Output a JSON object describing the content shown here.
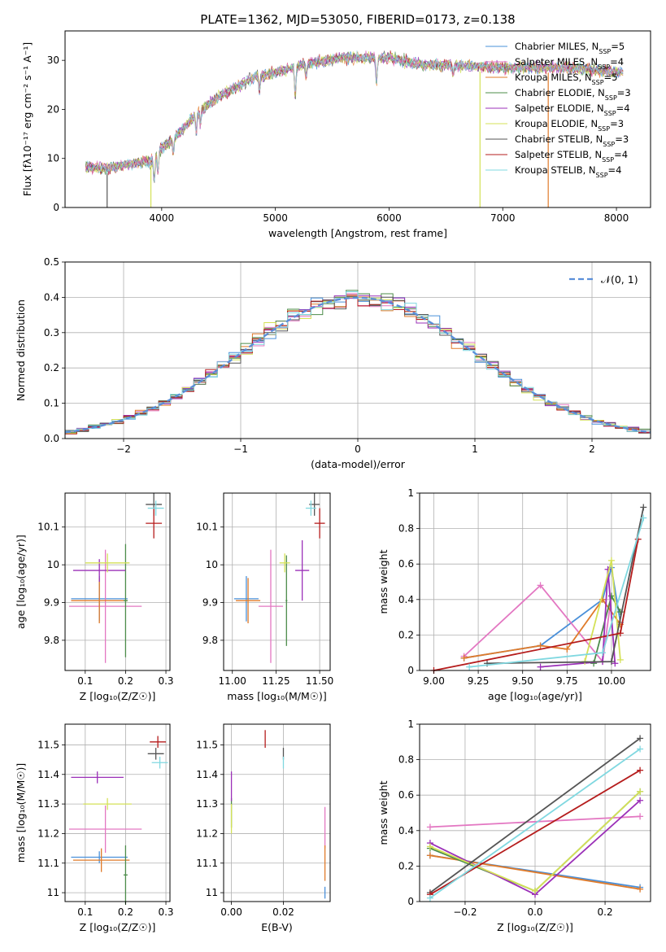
{
  "figure": {
    "title": "PLATE=1362, MJD=53050, FIBERID=0173, z=0.138",
    "legend_entries": [
      {
        "label": "Chabrier MILES, N",
        "sub": "SSP",
        "tail": "=5",
        "color": "#4a90d9"
      },
      {
        "label": "Salpeter MILES, N",
        "sub": "SSP",
        "tail": "=4",
        "color": "#e377c2"
      },
      {
        "label": "Kroupa MILES, N",
        "sub": "SSP",
        "tail": "=5",
        "color": "#e07b2a"
      },
      {
        "label": "Chabrier ELODIE, N",
        "sub": "SSP",
        "tail": "=3",
        "color": "#4c8c4a"
      },
      {
        "label": "Salpeter ELODIE, N",
        "sub": "SSP",
        "tail": "=4",
        "color": "#9b30b8"
      },
      {
        "label": "Kroupa ELODIE, N",
        "sub": "SSP",
        "tail": "=3",
        "color": "#d4e157"
      },
      {
        "label": "Chabrier STELIB, N",
        "sub": "SSP",
        "tail": "=3",
        "color": "#555555"
      },
      {
        "label": "Salpeter STELIB, N",
        "sub": "SSP",
        "tail": "=4",
        "color": "#b51c1c"
      },
      {
        "label": "Kroupa STELIB, N",
        "sub": "SSP",
        "tail": "=4",
        "color": "#80d8e0"
      }
    ]
  },
  "chart_data": [
    {
      "id": "spectrum",
      "type": "line",
      "xlabel": "wavelength [Angstrom, rest frame]",
      "ylabel": "Flux [fλ10⁻¹⁷ erg cm⁻² s⁻¹ A⁻¹]",
      "xlim": [
        3150,
        8300
      ],
      "ylim": [
        0,
        36
      ],
      "xticks": [
        4000,
        5000,
        6000,
        7000,
        8000
      ],
      "yticks": [
        0,
        10,
        20,
        30
      ],
      "continuum_knots": [
        [
          3330,
          8.3
        ],
        [
          3500,
          7.9
        ],
        [
          3700,
          8.8
        ],
        [
          3900,
          9.4
        ],
        [
          4000,
          12.0
        ],
        [
          4150,
          15.0
        ],
        [
          4300,
          19.0
        ],
        [
          4500,
          22.5
        ],
        [
          4800,
          26.5
        ],
        [
          5000,
          27.5
        ],
        [
          5300,
          29.5
        ],
        [
          5600,
          30.5
        ],
        [
          6000,
          30.5
        ],
        [
          6300,
          29.0
        ],
        [
          6600,
          29.0
        ],
        [
          7000,
          28.5
        ],
        [
          7300,
          28.5
        ],
        [
          7600,
          28.5
        ],
        [
          8060,
          27.5
        ]
      ],
      "absorption_lines": [
        [
          3934,
          5.0
        ],
        [
          3968,
          4.0
        ],
        [
          4102,
          3.0
        ],
        [
          4304,
          4.0
        ],
        [
          4340,
          3.0
        ],
        [
          4861,
          3.0
        ],
        [
          5175,
          6.0
        ],
        [
          5270,
          2.5
        ],
        [
          5890,
          5.0
        ],
        [
          6563,
          2.0
        ]
      ],
      "dropouts": [
        [
          3520,
          6
        ],
        [
          3905,
          5
        ],
        [
          6800,
          5
        ],
        [
          7400,
          2
        ]
      ],
      "grid": false
    },
    {
      "id": "residuals",
      "type": "histogram",
      "xlabel": "(data-model)/error",
      "ylabel": "Normed distribution",
      "xlim": [
        -2.5,
        2.5
      ],
      "ylim": [
        0,
        0.5
      ],
      "xticks": [
        -2,
        -1,
        0,
        1,
        2
      ],
      "yticks": [
        0.0,
        0.1,
        0.2,
        0.3,
        0.4,
        0.5
      ],
      "bin_width": 0.1,
      "reference_curve": {
        "name": "𝒩(0, 1)",
        "mean": 0,
        "sigma": 1
      },
      "grid": true
    },
    {
      "id": "age_vs_Z",
      "type": "errorbar",
      "xlabel": "Z [log₁₀(Z/Z☉)]",
      "ylabel": "age  [log₁₀(age/yr)]",
      "xlim": [
        0.05,
        0.31
      ],
      "ylim": [
        9.72,
        10.19
      ],
      "xticks": [
        0.1,
        0.2,
        0.3
      ],
      "yticks": [
        9.8,
        9.9,
        10.0,
        10.1
      ],
      "points": [
        {
          "series": 0,
          "x": 0.135,
          "y": 9.91,
          "xerr": 0.07,
          "yerr": 0.06
        },
        {
          "series": 1,
          "x": 0.15,
          "y": 9.89,
          "xerr": 0.09,
          "yerr": 0.15
        },
        {
          "series": 2,
          "x": 0.135,
          "y": 9.905,
          "xerr": 0.07,
          "yerr": 0.06
        },
        {
          "series": 3,
          "x": 0.2,
          "y": 9.905,
          "xerr": 0.005,
          "yerr": 0.15
        },
        {
          "series": 4,
          "x": 0.135,
          "y": 9.985,
          "xerr": 0.065,
          "yerr": 0.03
        },
        {
          "series": 5,
          "x": 0.155,
          "y": 10.005,
          "xerr": 0.055,
          "yerr": 0.025
        },
        {
          "series": 6,
          "x": 0.27,
          "y": 10.16,
          "xerr": 0.02,
          "yerr": 0.03
        },
        {
          "series": 7,
          "x": 0.27,
          "y": 10.11,
          "xerr": 0.02,
          "yerr": 0.04
        },
        {
          "series": 8,
          "x": 0.275,
          "y": 10.15,
          "xerr": 0.02,
          "yerr": 0.02
        }
      ]
    },
    {
      "id": "age_vs_mass",
      "type": "errorbar",
      "xlabel": "mass [log₁₀(M/M☉)]",
      "ylabel": "",
      "xlim": [
        10.95,
        11.56
      ],
      "ylim": [
        9.72,
        10.19
      ],
      "xticks": [
        11.0,
        11.25,
        11.5
      ],
      "xticklabels": [
        "11.00",
        "11.25",
        "11.50"
      ],
      "yticks": [
        9.8,
        9.9,
        10.0,
        10.1
      ],
      "points": [
        {
          "series": 0,
          "x": 11.08,
          "y": 9.91,
          "xerr": 0.07,
          "yerr": 0.06
        },
        {
          "series": 1,
          "x": 11.22,
          "y": 9.89,
          "xerr": 0.07,
          "yerr": 0.15
        },
        {
          "series": 2,
          "x": 11.09,
          "y": 9.905,
          "xerr": 0.07,
          "yerr": 0.06
        },
        {
          "series": 3,
          "x": 11.31,
          "y": 9.905,
          "xerr": 0.005,
          "yerr": 0.12
        },
        {
          "series": 4,
          "x": 11.4,
          "y": 9.985,
          "xerr": 0.04,
          "yerr": 0.08
        },
        {
          "series": 5,
          "x": 11.3,
          "y": 10.005,
          "xerr": 0.03,
          "yerr": 0.025
        },
        {
          "series": 6,
          "x": 11.47,
          "y": 10.16,
          "xerr": 0.03,
          "yerr": 0.03
        },
        {
          "series": 7,
          "x": 11.5,
          "y": 10.11,
          "xerr": 0.03,
          "yerr": 0.04
        },
        {
          "series": 8,
          "x": 11.45,
          "y": 10.15,
          "xerr": 0.03,
          "yerr": 0.02
        }
      ]
    },
    {
      "id": "weight_vs_age",
      "type": "line",
      "xlabel": "age  [log₁₀(age/yr)]",
      "ylabel": "mass weight",
      "xlim": [
        8.92,
        10.22
      ],
      "ylim": [
        0,
        1
      ],
      "xticks": [
        9.0,
        9.25,
        9.5,
        9.75,
        10.0
      ],
      "xticklabels": [
        "9.00",
        "9.25",
        "9.50",
        "9.75",
        "10.00"
      ],
      "yticks": [
        0.0,
        0.2,
        0.4,
        0.6,
        0.8,
        1.0
      ],
      "series": [
        {
          "series": 0,
          "x": [
            9.17,
            9.6,
            9.95,
            10.0,
            10.05
          ],
          "y": [
            0.07,
            0.14,
            0.4,
            0.58,
            0.27
          ]
        },
        {
          "series": 1,
          "x": [
            9.17,
            9.6,
            9.95,
            10.0
          ],
          "y": [
            0.08,
            0.48,
            0.05,
            0.42
          ]
        },
        {
          "series": 2,
          "x": [
            9.17,
            9.6,
            9.75,
            9.95,
            10.05
          ],
          "y": [
            0.07,
            0.14,
            0.12,
            0.4,
            0.26
          ]
        },
        {
          "series": 3,
          "x": [
            9.9,
            10.0,
            10.05
          ],
          "y": [
            0.04,
            0.42,
            0.33
          ]
        },
        {
          "series": 4,
          "x": [
            9.6,
            9.95,
            9.98,
            10.02
          ],
          "y": [
            0.02,
            0.05,
            0.57,
            0.04
          ]
        },
        {
          "series": 5,
          "x": [
            9.85,
            10.0,
            10.05
          ],
          "y": [
            0.05,
            0.62,
            0.06
          ]
        },
        {
          "series": 6,
          "x": [
            9.3,
            10.0,
            10.18
          ],
          "y": [
            0.04,
            0.05,
            0.92
          ]
        },
        {
          "series": 7,
          "x": [
            9.0,
            10.05,
            10.15
          ],
          "y": [
            0.0,
            0.21,
            0.74
          ]
        },
        {
          "series": 8,
          "x": [
            9.2,
            9.95,
            10.18
          ],
          "y": [
            0.02,
            0.1,
            0.86
          ]
        }
      ],
      "grid": true
    },
    {
      "id": "mass_vs_Z",
      "type": "errorbar",
      "xlabel": "Z [log₁₀(Z/Z☉)]",
      "ylabel": "mass [log₁₀(M/M☉)]",
      "xlim": [
        0.05,
        0.31
      ],
      "ylim": [
        10.97,
        11.57
      ],
      "xticks": [
        0.1,
        0.2,
        0.3
      ],
      "yticks": [
        11.0,
        11.1,
        11.2,
        11.3,
        11.4,
        11.5
      ],
      "points": [
        {
          "series": 0,
          "x": 0.135,
          "y": 11.12,
          "xerr": 0.07,
          "yerr": 0.02
        },
        {
          "series": 1,
          "x": 0.15,
          "y": 11.215,
          "xerr": 0.09,
          "yerr": 0.08
        },
        {
          "series": 2,
          "x": 0.14,
          "y": 11.11,
          "xerr": 0.07,
          "yerr": 0.04
        },
        {
          "series": 3,
          "x": 0.2,
          "y": 11.06,
          "xerr": 0.005,
          "yerr": 0.1
        },
        {
          "series": 4,
          "x": 0.13,
          "y": 11.39,
          "xerr": 0.065,
          "yerr": 0.02
        },
        {
          "series": 5,
          "x": 0.155,
          "y": 11.3,
          "xerr": 0.06,
          "yerr": 0.02
        },
        {
          "series": 6,
          "x": 0.275,
          "y": 11.47,
          "xerr": 0.02,
          "yerr": 0.02
        },
        {
          "series": 7,
          "x": 0.28,
          "y": 11.51,
          "xerr": 0.02,
          "yerr": 0.02
        },
        {
          "series": 8,
          "x": 0.285,
          "y": 11.44,
          "xerr": 0.02,
          "yerr": 0.02
        }
      ]
    },
    {
      "id": "mass_vs_ebv",
      "type": "errorbar",
      "xlabel": "E(B-V)",
      "ylabel": "",
      "xlim": [
        -0.003,
        0.038
      ],
      "ylim": [
        10.97,
        11.57
      ],
      "xticks": [
        0.0,
        0.02
      ],
      "xticklabels": [
        "0.00",
        "0.02"
      ],
      "yticks": [
        11.0,
        11.1,
        11.2,
        11.3,
        11.4,
        11.5
      ],
      "points": [
        {
          "series": 0,
          "x": 0.036,
          "y": 11.0,
          "xerr": 0,
          "yerr": 0.02
        },
        {
          "series": 1,
          "x": 0.036,
          "y": 11.22,
          "xerr": 0,
          "yerr": 0.07
        },
        {
          "series": 2,
          "x": 0.036,
          "y": 11.1,
          "xerr": 0,
          "yerr": 0.06
        },
        {
          "series": 3,
          "x": 0.0,
          "y": 11.27,
          "xerr": 0,
          "yerr": 0.05
        },
        {
          "series": 4,
          "x": 0.0,
          "y": 11.36,
          "xerr": 0,
          "yerr": 0.05
        },
        {
          "series": 5,
          "x": 0.0,
          "y": 11.25,
          "xerr": 0,
          "yerr": 0.05
        },
        {
          "series": 6,
          "x": 0.02,
          "y": 11.47,
          "xerr": 0,
          "yerr": 0.02
        },
        {
          "series": 7,
          "x": 0.013,
          "y": 11.52,
          "xerr": 0,
          "yerr": 0.03
        },
        {
          "series": 8,
          "x": 0.02,
          "y": 11.44,
          "xerr": 0,
          "yerr": 0.02
        }
      ]
    },
    {
      "id": "weight_vs_Z",
      "type": "line",
      "xlabel": "Z [log₁₀(Z/Z☉)]",
      "ylabel": "mass weight",
      "xlim": [
        -0.33,
        0.33
      ],
      "ylim": [
        0,
        1
      ],
      "xticks": [
        -0.2,
        0.0,
        0.2
      ],
      "xticklabels": [
        "−0.2",
        "0.0",
        "0.2"
      ],
      "yticks": [
        0.0,
        0.2,
        0.4,
        0.6,
        0.8,
        1.0
      ],
      "series": [
        {
          "series": 0,
          "x": [
            -0.3,
            0.3
          ],
          "y": [
            0.26,
            0.08
          ]
        },
        {
          "series": 1,
          "x": [
            -0.3,
            0.3
          ],
          "y": [
            0.42,
            0.48
          ]
        },
        {
          "series": 2,
          "x": [
            -0.3,
            0.3
          ],
          "y": [
            0.26,
            0.07
          ]
        },
        {
          "series": 3,
          "x": [
            -0.3,
            0.0,
            0.3
          ],
          "y": [
            0.3,
            0.06,
            0.62
          ]
        },
        {
          "series": 4,
          "x": [
            -0.3,
            0.0,
            0.3
          ],
          "y": [
            0.33,
            0.04,
            0.57
          ]
        },
        {
          "series": 5,
          "x": [
            -0.3,
            0.0,
            0.3
          ],
          "y": [
            0.31,
            0.06,
            0.62
          ]
        },
        {
          "series": 6,
          "x": [
            -0.3,
            0.3
          ],
          "y": [
            0.05,
            0.92
          ]
        },
        {
          "series": 7,
          "x": [
            -0.3,
            0.3
          ],
          "y": [
            0.04,
            0.74
          ]
        },
        {
          "series": 8,
          "x": [
            -0.3,
            0.3
          ],
          "y": [
            0.02,
            0.86
          ]
        }
      ],
      "grid": true
    }
  ]
}
